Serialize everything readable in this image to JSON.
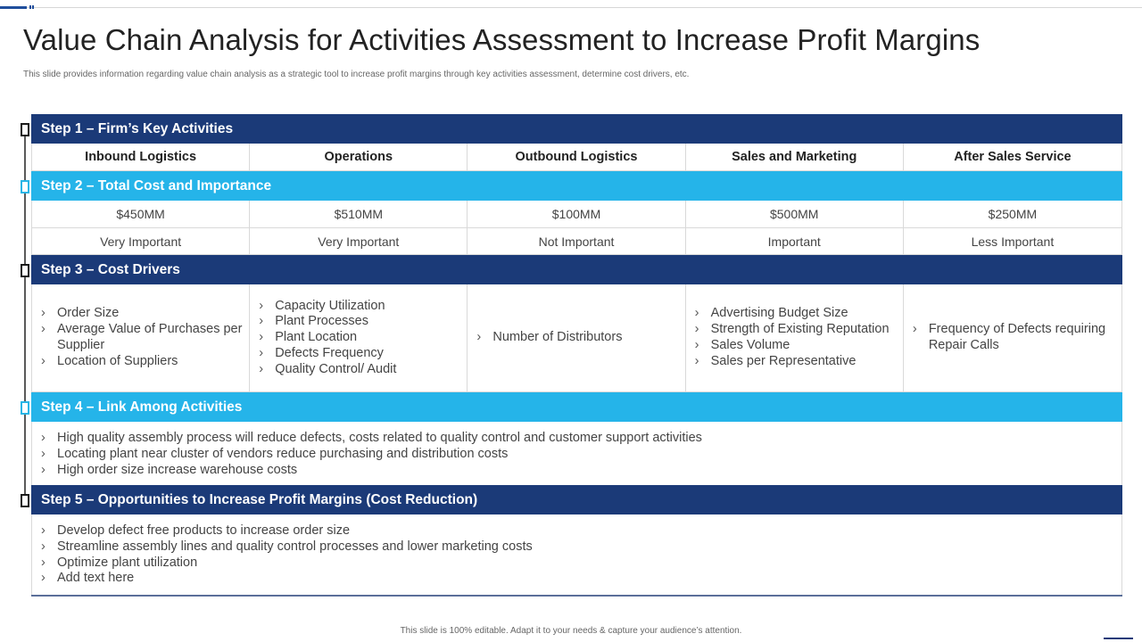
{
  "title": "Value Chain Analysis for Activities Assessment to Increase Profit Margins",
  "subtitle": "This slide provides information regarding value chain analysis as a strategic tool to increase profit margins through key activities assessment, determine cost drivers, etc.",
  "colors": {
    "dark_band": "#1b3a78",
    "light_band": "#25b4e9"
  },
  "steps": {
    "step1": "Step 1 – Firm’s Key Activities",
    "step2": "Step 2 – Total Cost and Importance",
    "step3": "Step 3 – Cost Drivers",
    "step4": "Step 4 – Link Among Activities",
    "step5": "Step 5 – Opportunities to Increase Profit Margins (Cost Reduction)"
  },
  "activities": [
    "Inbound Logistics",
    "Operations",
    "Outbound Logistics",
    "Sales and Marketing",
    "After Sales Service"
  ],
  "costs": [
    "$450MM",
    "$510MM",
    "$100MM",
    "$500MM",
    "$250MM"
  ],
  "importance": [
    "Very Important",
    "Very Important",
    "Not Important",
    "Important",
    "Less Important"
  ],
  "cost_drivers": [
    [
      "Order Size",
      "Average Value of Purchases per Supplier",
      "Location of Suppliers"
    ],
    [
      "Capacity Utilization",
      "Plant Processes",
      "Plant Location",
      "Defects Frequency",
      "Quality Control/ Audit"
    ],
    [
      "Number of Distributors"
    ],
    [
      "Advertising Budget Size",
      "Strength of Existing Reputation",
      "Sales Volume",
      "Sales per Representative"
    ],
    [
      "Frequency of Defects requiring Repair Calls"
    ]
  ],
  "links": [
    "High quality assembly process will reduce defects, costs related to quality control and customer support activities",
    "Locating plant near cluster of vendors reduce purchasing and distribution costs",
    "High order size increase warehouse costs"
  ],
  "opportunities": [
    "Develop defect free products to increase order size",
    "Streamline assembly lines and quality control processes and lower marketing costs",
    "Optimize plant utilization",
    "Add text here"
  ],
  "footer": "This slide is 100% editable.  Adapt it to your needs & capture your audience’s attention."
}
